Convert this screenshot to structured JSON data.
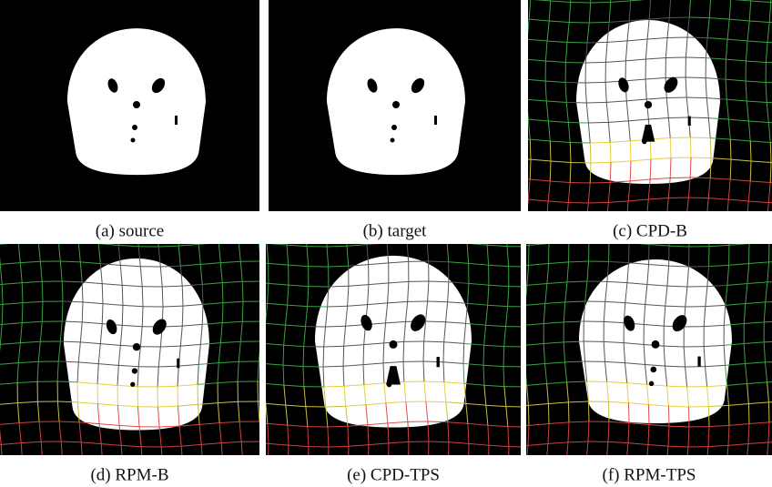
{
  "figure": {
    "captions": [
      "(a) source",
      "(b) target",
      "(c) CPD-B",
      "(d) RPM-B",
      "(e) CPD-TPS",
      "(f) RPM-TPS"
    ]
  }
}
